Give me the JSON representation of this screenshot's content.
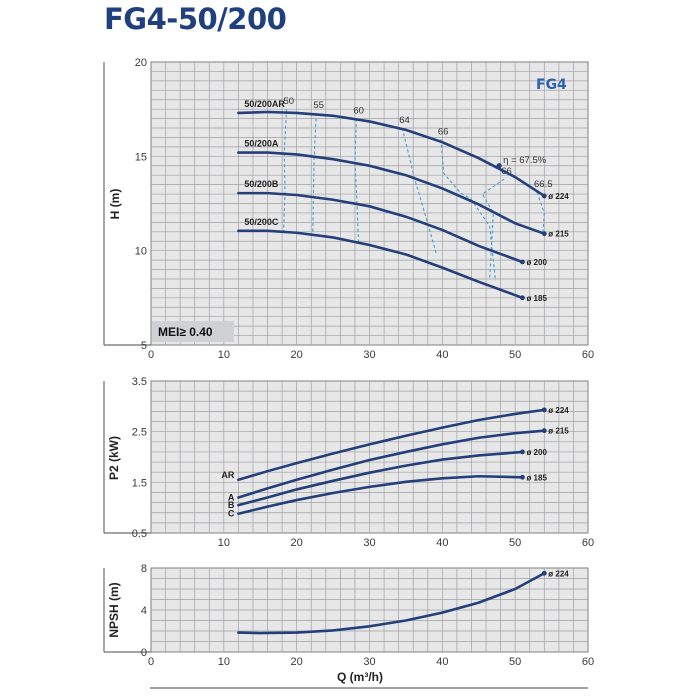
{
  "title": "FG4-50/200",
  "badge": "FG4",
  "mei": "MEI≥ 0.40",
  "curve_color": "#243f7a",
  "efficiency_color": "#3fa0d8",
  "chart_data": [
    {
      "type": "line",
      "id": "head",
      "ylabel": "H (m)",
      "xlim": [
        0,
        60
      ],
      "ylim": [
        5,
        20
      ],
      "xticks": [
        0,
        10,
        20,
        30,
        40,
        50,
        60
      ],
      "yticks": [
        5,
        10,
        15,
        20
      ],
      "grid": true,
      "series": [
        {
          "name": "50/200AR",
          "end_label": "ø 224",
          "x": [
            12,
            16,
            20,
            25,
            30,
            35,
            40,
            45,
            50,
            54
          ],
          "y": [
            17.3,
            17.35,
            17.3,
            17.15,
            16.85,
            16.4,
            15.75,
            14.9,
            13.9,
            12.9
          ]
        },
        {
          "name": "50/200A",
          "end_label": "ø 215",
          "x": [
            12,
            16,
            20,
            25,
            30,
            35,
            40,
            45,
            50,
            54
          ],
          "y": [
            15.2,
            15.2,
            15.1,
            14.85,
            14.5,
            14.0,
            13.3,
            12.45,
            11.45,
            10.9
          ]
        },
        {
          "name": "50/200B",
          "end_label": "ø 200",
          "x": [
            12,
            16,
            20,
            25,
            30,
            35,
            40,
            45,
            51
          ],
          "y": [
            13.05,
            13.05,
            12.95,
            12.7,
            12.35,
            11.8,
            11.1,
            10.25,
            9.4
          ]
        },
        {
          "name": "50/200C",
          "end_label": "ø 185",
          "x": [
            12,
            16,
            20,
            25,
            30,
            35,
            40,
            45,
            51
          ],
          "y": [
            11.05,
            11.05,
            10.95,
            10.7,
            10.3,
            9.8,
            9.1,
            8.35,
            7.5
          ]
        }
      ],
      "efficiency_lines": [
        {
          "label": "50",
          "x": [
            18.6,
            18.3,
            18.4,
            18.2
          ],
          "y": [
            17.5,
            15.2,
            13.05,
            11.0
          ]
        },
        {
          "label": "55",
          "x": [
            22.7,
            22.4,
            22.3,
            22.2
          ],
          "y": [
            17.3,
            15.0,
            12.9,
            10.8
          ]
        },
        {
          "label": "60",
          "x": [
            28.2,
            28.0,
            28.3,
            28.5
          ],
          "y": [
            17.0,
            14.7,
            12.4,
            10.3
          ]
        },
        {
          "label": "64",
          "x": [
            34.5,
            36.2,
            37.8,
            39.2
          ],
          "y": [
            16.5,
            13.8,
            11.7,
            9.8
          ]
        },
        {
          "label": "66",
          "x": [
            39.8,
            40.2,
            42.4,
            44.0,
            46.5,
            47.3
          ],
          "y": [
            15.9,
            14.1,
            13.1,
            12.7,
            11.3,
            8.4
          ]
        },
        {
          "label": "66",
          "x": [
            48.5,
            47.0,
            45.5,
            47.0,
            46.5
          ],
          "y": [
            13.8,
            13.4,
            13.0,
            12.0,
            8.5
          ]
        },
        {
          "label": "η = 67.5%",
          "x": [
            47.8
          ],
          "y": [
            14.5
          ]
        },
        {
          "label": "66.5",
          "x": [
            53.0,
            54.0,
            53.8
          ],
          "y": [
            13.1,
            12.0,
            10.9
          ]
        }
      ]
    },
    {
      "type": "line",
      "id": "power",
      "ylabel": "P2 (kW)",
      "xlim": [
        0,
        60
      ],
      "ylim": [
        0.5,
        3.5
      ],
      "xticks": [
        10,
        20,
        30,
        40,
        50,
        60
      ],
      "yticks": [
        0.5,
        1.5,
        2.5,
        3.5
      ],
      "grid": true,
      "series": [
        {
          "name": "AR",
          "end_label": "ø 224",
          "x": [
            12,
            16,
            20,
            25,
            30,
            35,
            40,
            45,
            50,
            54
          ],
          "y": [
            1.55,
            1.72,
            1.88,
            2.07,
            2.25,
            2.42,
            2.58,
            2.73,
            2.85,
            2.93
          ]
        },
        {
          "name": "A",
          "end_label": "ø 215",
          "x": [
            12,
            16,
            20,
            25,
            30,
            35,
            40,
            45,
            50,
            54
          ],
          "y": [
            1.2,
            1.38,
            1.55,
            1.75,
            1.94,
            2.1,
            2.25,
            2.38,
            2.47,
            2.52
          ]
        },
        {
          "name": "B",
          "end_label": "ø 200",
          "x": [
            12,
            16,
            20,
            25,
            30,
            35,
            40,
            45,
            51
          ],
          "y": [
            1.05,
            1.2,
            1.36,
            1.53,
            1.69,
            1.83,
            1.95,
            2.03,
            2.1
          ]
        },
        {
          "name": "C",
          "end_label": "ø 185",
          "x": [
            12,
            16,
            20,
            25,
            30,
            35,
            40,
            45,
            51
          ],
          "y": [
            0.88,
            1.02,
            1.15,
            1.29,
            1.41,
            1.51,
            1.58,
            1.62,
            1.6
          ]
        }
      ]
    },
    {
      "type": "line",
      "id": "npsh",
      "ylabel": "NPSH (m)",
      "xlabel": "Q (m³/h)",
      "xlim": [
        0,
        60
      ],
      "ylim": [
        0,
        8
      ],
      "xticks": [
        0,
        10,
        20,
        30,
        40,
        50,
        60
      ],
      "yticks": [
        0,
        4,
        8
      ],
      "grid": true,
      "series": [
        {
          "name": "",
          "end_label": "ø 224",
          "x": [
            12,
            15,
            20,
            25,
            30,
            35,
            40,
            45,
            50,
            54
          ],
          "y": [
            1.85,
            1.8,
            1.85,
            2.05,
            2.45,
            3.0,
            3.75,
            4.7,
            6.0,
            7.5
          ]
        }
      ]
    }
  ]
}
